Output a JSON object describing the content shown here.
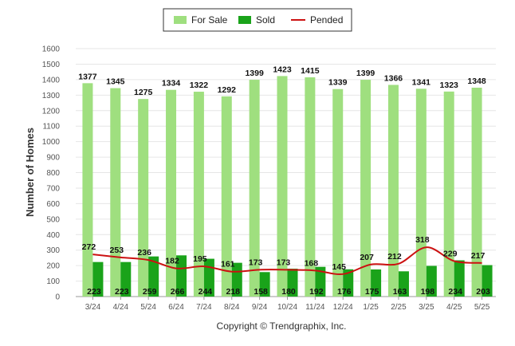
{
  "chart_data": {
    "type": "bar",
    "categories": [
      "3/24",
      "4/24",
      "5/24",
      "6/24",
      "7/24",
      "8/24",
      "9/24",
      "10/24",
      "11/24",
      "12/24",
      "1/25",
      "2/25",
      "3/25",
      "4/25",
      "5/25"
    ],
    "series": [
      {
        "name": "For Sale",
        "type": "bar",
        "color": "#9fdf7f",
        "values": [
          1377,
          1345,
          1275,
          1334,
          1322,
          1292,
          1399,
          1423,
          1415,
          1339,
          1399,
          1366,
          1341,
          1323,
          1348
        ]
      },
      {
        "name": "Sold",
        "type": "bar",
        "color": "#1aa31a",
        "values": [
          223,
          223,
          259,
          266,
          244,
          218,
          158,
          180,
          192,
          176,
          175,
          163,
          198,
          234,
          203
        ]
      },
      {
        "name": "Pended",
        "type": "line",
        "color": "#cc1111",
        "values": [
          272,
          253,
          236,
          182,
          195,
          161,
          173,
          173,
          168,
          145,
          207,
          212,
          318,
          229,
          217
        ]
      }
    ],
    "xlabel": "",
    "ylabel": "Number of Homes",
    "ylim": [
      0,
      1600
    ],
    "yticks": [
      0,
      100,
      200,
      300,
      400,
      500,
      600,
      700,
      800,
      900,
      1000,
      1100,
      1200,
      1300,
      1400,
      1500,
      1600
    ],
    "grid": true,
    "legend_position": "top-center"
  },
  "footer": {
    "copyright": "Copyright © Trendgraphix, Inc."
  }
}
